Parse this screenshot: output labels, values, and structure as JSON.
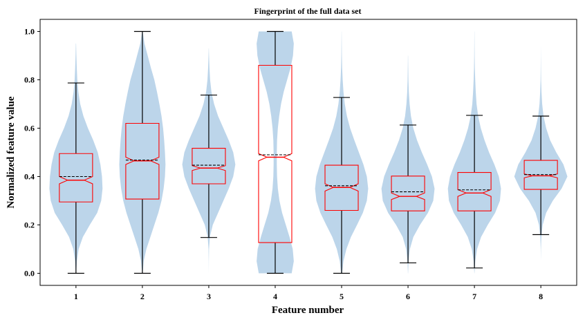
{
  "chart_data": {
    "type": "violin-box",
    "title": "Fingerprint of the full data set",
    "xlabel": "Feature number",
    "ylabel": "Normalized feature value",
    "categories": [
      "1",
      "2",
      "3",
      "4",
      "5",
      "6",
      "7",
      "8"
    ],
    "xlim": [
      0.46,
      8.54
    ],
    "ylim": [
      -0.05,
      1.05
    ],
    "yticks": [
      0.0,
      0.2,
      0.4,
      0.6,
      0.8,
      1.0
    ],
    "ytick_labels": [
      "0.0",
      "0.2",
      "0.4",
      "0.6",
      "0.8",
      "1.0"
    ],
    "grid": false,
    "series": [
      {
        "feature": 1,
        "whisker_low": 0.0,
        "q1": 0.295,
        "median": 0.385,
        "mean": 0.4,
        "q3": 0.495,
        "whisker_high": 0.787,
        "notch_low": 0.37,
        "notch_high": 0.4,
        "violin": [
          [
            0.0,
            0.005
          ],
          [
            0.05,
            0.035
          ],
          [
            0.1,
            0.1
          ],
          [
            0.15,
            0.26
          ],
          [
            0.2,
            0.52
          ],
          [
            0.25,
            0.8
          ],
          [
            0.3,
            0.95
          ],
          [
            0.35,
            1.0
          ],
          [
            0.4,
            0.98
          ],
          [
            0.45,
            0.92
          ],
          [
            0.5,
            0.82
          ],
          [
            0.55,
            0.65
          ],
          [
            0.6,
            0.45
          ],
          [
            0.65,
            0.28
          ],
          [
            0.7,
            0.16
          ],
          [
            0.75,
            0.09
          ],
          [
            0.8,
            0.05
          ],
          [
            0.85,
            0.03
          ],
          [
            0.9,
            0.015
          ],
          [
            0.95,
            0.005
          ]
        ]
      },
      {
        "feature": 2,
        "whisker_low": 0.0,
        "q1": 0.307,
        "median": 0.465,
        "mean": 0.468,
        "q3": 0.62,
        "whisker_high": 1.0,
        "notch_low": 0.45,
        "notch_high": 0.48,
        "violin": [
          [
            0.0,
            0.01
          ],
          [
            0.05,
            0.05
          ],
          [
            0.1,
            0.15
          ],
          [
            0.15,
            0.3
          ],
          [
            0.2,
            0.45
          ],
          [
            0.25,
            0.6
          ],
          [
            0.3,
            0.72
          ],
          [
            0.35,
            0.8
          ],
          [
            0.4,
            0.85
          ],
          [
            0.45,
            0.87
          ],
          [
            0.5,
            0.85
          ],
          [
            0.55,
            0.82
          ],
          [
            0.6,
            0.78
          ],
          [
            0.65,
            0.72
          ],
          [
            0.7,
            0.64
          ],
          [
            0.75,
            0.55
          ],
          [
            0.8,
            0.45
          ],
          [
            0.85,
            0.32
          ],
          [
            0.9,
            0.2
          ],
          [
            0.95,
            0.08
          ],
          [
            1.0,
            0.01
          ]
        ]
      },
      {
        "feature": 3,
        "whisker_low": 0.148,
        "q1": 0.37,
        "median": 0.435,
        "mean": 0.447,
        "q3": 0.517,
        "whisker_high": 0.737,
        "notch_low": 0.425,
        "notch_high": 0.445,
        "violin": [
          [
            0.0,
            0.0
          ],
          [
            0.05,
            0.003
          ],
          [
            0.1,
            0.01
          ],
          [
            0.15,
            0.04
          ],
          [
            0.2,
            0.15
          ],
          [
            0.25,
            0.35
          ],
          [
            0.3,
            0.55
          ],
          [
            0.35,
            0.75
          ],
          [
            0.4,
            0.92
          ],
          [
            0.45,
            1.0
          ],
          [
            0.5,
            0.92
          ],
          [
            0.55,
            0.75
          ],
          [
            0.6,
            0.55
          ],
          [
            0.65,
            0.35
          ],
          [
            0.7,
            0.2
          ],
          [
            0.75,
            0.1
          ],
          [
            0.8,
            0.05
          ],
          [
            0.85,
            0.025
          ],
          [
            0.9,
            0.01
          ],
          [
            0.93,
            0.003
          ]
        ]
      },
      {
        "feature": 4,
        "whisker_low": 0.0,
        "q1": 0.127,
        "median": 0.48,
        "mean": 0.49,
        "q3": 0.86,
        "whisker_high": 1.0,
        "notch_low": 0.465,
        "notch_high": 0.495,
        "violin": [
          [
            0.0,
            0.62
          ],
          [
            0.05,
            0.7
          ],
          [
            0.1,
            0.66
          ],
          [
            0.15,
            0.54
          ],
          [
            0.2,
            0.4
          ],
          [
            0.25,
            0.26
          ],
          [
            0.3,
            0.16
          ],
          [
            0.35,
            0.1
          ],
          [
            0.4,
            0.07
          ],
          [
            0.45,
            0.06
          ],
          [
            0.5,
            0.06
          ],
          [
            0.55,
            0.07
          ],
          [
            0.6,
            0.1
          ],
          [
            0.65,
            0.15
          ],
          [
            0.7,
            0.22
          ],
          [
            0.75,
            0.32
          ],
          [
            0.8,
            0.45
          ],
          [
            0.85,
            0.58
          ],
          [
            0.9,
            0.67
          ],
          [
            0.95,
            0.7
          ],
          [
            1.0,
            0.62
          ]
        ]
      },
      {
        "feature": 5,
        "whisker_low": 0.0,
        "q1": 0.26,
        "median": 0.355,
        "mean": 0.362,
        "q3": 0.447,
        "whisker_high": 0.727,
        "notch_low": 0.34,
        "notch_high": 0.37,
        "violin": [
          [
            0.0,
            0.02
          ],
          [
            0.05,
            0.07
          ],
          [
            0.1,
            0.18
          ],
          [
            0.15,
            0.35
          ],
          [
            0.2,
            0.58
          ],
          [
            0.25,
            0.8
          ],
          [
            0.3,
            0.95
          ],
          [
            0.35,
            1.0
          ],
          [
            0.4,
            0.95
          ],
          [
            0.45,
            0.82
          ],
          [
            0.5,
            0.65
          ],
          [
            0.55,
            0.48
          ],
          [
            0.6,
            0.32
          ],
          [
            0.65,
            0.2
          ],
          [
            0.7,
            0.12
          ],
          [
            0.75,
            0.07
          ],
          [
            0.8,
            0.04
          ],
          [
            0.85,
            0.02
          ],
          [
            0.9,
            0.01
          ],
          [
            1.0,
            0.002
          ]
        ]
      },
      {
        "feature": 6,
        "whisker_low": 0.043,
        "q1": 0.258,
        "median": 0.318,
        "mean": 0.337,
        "q3": 0.402,
        "whisker_high": 0.613,
        "notch_low": 0.305,
        "notch_high": 0.332,
        "violin": [
          [
            0.0,
            0.003
          ],
          [
            0.05,
            0.02
          ],
          [
            0.1,
            0.07
          ],
          [
            0.15,
            0.2
          ],
          [
            0.2,
            0.45
          ],
          [
            0.25,
            0.75
          ],
          [
            0.3,
            0.95
          ],
          [
            0.35,
            1.0
          ],
          [
            0.4,
            0.9
          ],
          [
            0.45,
            0.72
          ],
          [
            0.5,
            0.52
          ],
          [
            0.55,
            0.34
          ],
          [
            0.6,
            0.2
          ],
          [
            0.65,
            0.11
          ],
          [
            0.7,
            0.06
          ],
          [
            0.75,
            0.03
          ],
          [
            0.8,
            0.015
          ],
          [
            0.85,
            0.008
          ],
          [
            0.9,
            0.003
          ]
        ]
      },
      {
        "feature": 7,
        "whisker_low": 0.022,
        "q1": 0.258,
        "median": 0.332,
        "mean": 0.345,
        "q3": 0.417,
        "whisker_high": 0.653,
        "notch_low": 0.318,
        "notch_high": 0.346,
        "violin": [
          [
            0.0,
            0.003
          ],
          [
            0.05,
            0.03
          ],
          [
            0.1,
            0.1
          ],
          [
            0.15,
            0.25
          ],
          [
            0.2,
            0.5
          ],
          [
            0.25,
            0.78
          ],
          [
            0.3,
            0.96
          ],
          [
            0.35,
            1.0
          ],
          [
            0.4,
            0.92
          ],
          [
            0.45,
            0.75
          ],
          [
            0.5,
            0.55
          ],
          [
            0.55,
            0.38
          ],
          [
            0.6,
            0.24
          ],
          [
            0.65,
            0.14
          ],
          [
            0.7,
            0.08
          ],
          [
            0.75,
            0.05
          ],
          [
            0.8,
            0.03
          ],
          [
            0.85,
            0.015
          ],
          [
            0.9,
            0.008
          ],
          [
            1.0,
            0.002
          ]
        ]
      },
      {
        "feature": 8,
        "whisker_low": 0.16,
        "q1": 0.347,
        "median": 0.403,
        "mean": 0.408,
        "q3": 0.467,
        "whisker_high": 0.65,
        "notch_low": 0.395,
        "notch_high": 0.411,
        "violin": [
          [
            0.05,
            0.0
          ],
          [
            0.1,
            0.005
          ],
          [
            0.15,
            0.02
          ],
          [
            0.2,
            0.07
          ],
          [
            0.25,
            0.2
          ],
          [
            0.3,
            0.45
          ],
          [
            0.35,
            0.78
          ],
          [
            0.4,
            1.0
          ],
          [
            0.45,
            0.85
          ],
          [
            0.5,
            0.58
          ],
          [
            0.55,
            0.35
          ],
          [
            0.6,
            0.2
          ],
          [
            0.65,
            0.1
          ],
          [
            0.7,
            0.05
          ],
          [
            0.75,
            0.025
          ],
          [
            0.8,
            0.01
          ],
          [
            0.85,
            0.005
          ],
          [
            0.9,
            0.002
          ],
          [
            0.95,
            0.0
          ]
        ]
      }
    ],
    "colors": {
      "violin": "#bcd5ea",
      "box": "#ff0000",
      "whisker": "#000000",
      "median": "#ff0000",
      "mean": "#000000"
    }
  }
}
